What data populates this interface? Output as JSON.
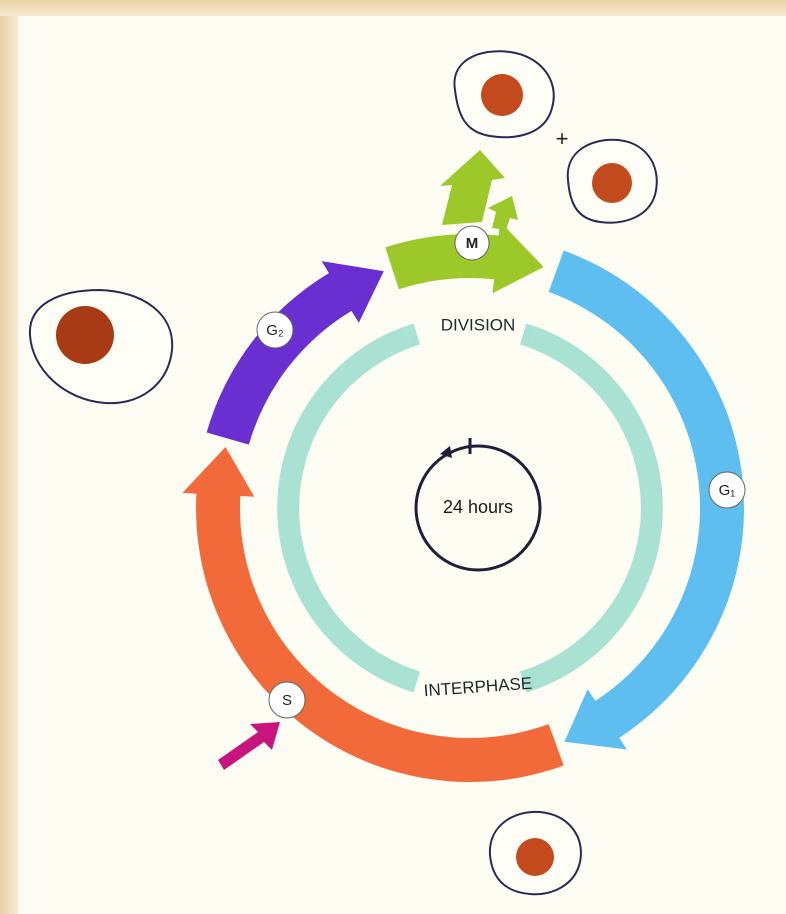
{
  "diagram": {
    "phases": [
      {
        "label": "M"
      },
      {
        "label": "G₁"
      },
      {
        "label": "S"
      },
      {
        "label": "G₂"
      }
    ],
    "ring_labels": {
      "division": "DIVISION",
      "interphase": "INTERPHASE"
    },
    "center_label": "24 hours",
    "plus": "+"
  }
}
